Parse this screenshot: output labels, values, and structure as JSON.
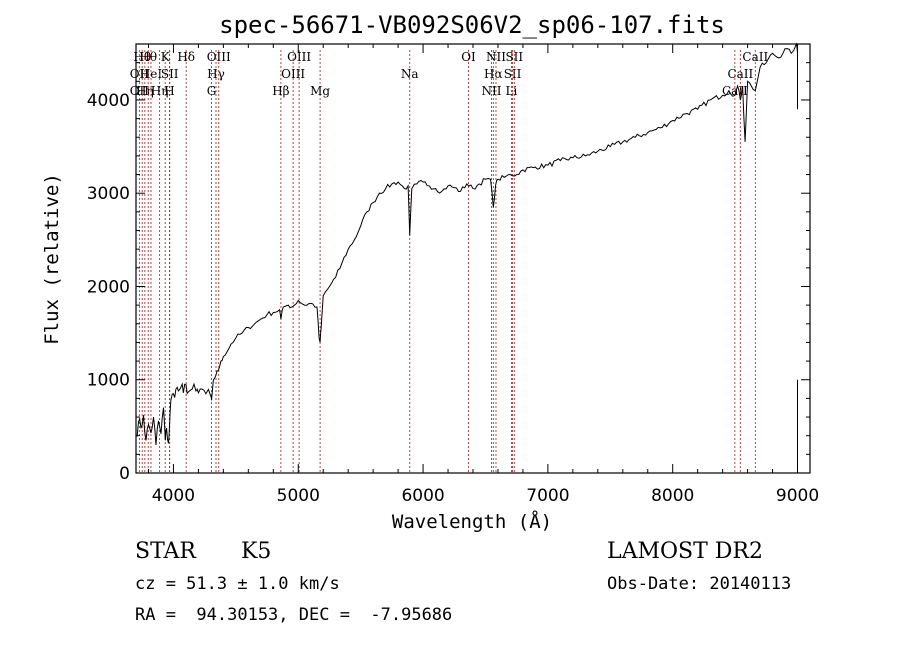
{
  "chart_data": {
    "type": "line",
    "title": "spec-56671-VB092S06V2_sp06-107.fits",
    "xlabel": "Wavelength (Å)",
    "ylabel": "Flux (relative)",
    "xlim": [
      3700,
      9100
    ],
    "ylim": [
      0,
      4600
    ],
    "xticks": [
      4000,
      5000,
      6000,
      7000,
      8000,
      9000
    ],
    "yticks": [
      0,
      1000,
      2000,
      3000,
      4000
    ],
    "grid": false,
    "series": [
      {
        "x": [
          3700,
          3720,
          3740,
          3760,
          3780,
          3800,
          3820,
          3840,
          3860,
          3880,
          3900,
          3920,
          3935,
          3945,
          3960,
          3968,
          3980,
          4000,
          4020,
          4040,
          4060,
          4080,
          4100,
          4120,
          4150,
          4180,
          4200,
          4230,
          4260,
          4300,
          4305,
          4320,
          4340,
          4360,
          4380,
          4400,
          4430,
          4460,
          4500,
          4550,
          4600,
          4650,
          4700,
          4750,
          4800,
          4850,
          4861,
          4880,
          4920,
          4950,
          5000,
          5050,
          5100,
          5150,
          5167,
          5175,
          5183,
          5200,
          5250,
          5300,
          5350,
          5400,
          5450,
          5500,
          5550,
          5600,
          5650,
          5700,
          5750,
          5800,
          5850,
          5880,
          5893,
          5910,
          5950,
          6000,
          6050,
          6100,
          6150,
          6200,
          6250,
          6300,
          6350,
          6400,
          6450,
          6500,
          6540,
          6563,
          6580,
          6600,
          6650,
          6700,
          6750,
          6800,
          6900,
          7000,
          7100,
          7200,
          7300,
          7400,
          7500,
          7600,
          7700,
          7800,
          7900,
          8000,
          8100,
          8200,
          8300,
          8400,
          8450,
          8498,
          8520,
          8542,
          8560,
          8580,
          8600,
          8630,
          8662,
          8700,
          8750,
          8800,
          8850,
          8900,
          8950,
          8990,
          9000
        ],
        "values": [
          400,
          550,
          480,
          620,
          350,
          520,
          430,
          600,
          300,
          560,
          420,
          700,
          350,
          480,
          320,
          500,
          780,
          850,
          900,
          880,
          920,
          860,
          950,
          870,
          900,
          880,
          860,
          900,
          850,
          820,
          780,
          1000,
          1050,
          1100,
          1200,
          1250,
          1300,
          1380,
          1450,
          1500,
          1560,
          1600,
          1650,
          1700,
          1720,
          1750,
          1650,
          1780,
          1800,
          1780,
          1850,
          1800,
          1820,
          1780,
          1450,
          1400,
          1550,
          1900,
          2000,
          2100,
          2250,
          2400,
          2500,
          2650,
          2800,
          2900,
          3000,
          3050,
          3100,
          3120,
          3050,
          3080,
          2550,
          3050,
          3100,
          3120,
          3080,
          3050,
          3020,
          3080,
          3060,
          3020,
          3100,
          3050,
          3100,
          3150,
          3150,
          2850,
          3080,
          3150,
          3170,
          3200,
          3200,
          3250,
          3280,
          3300,
          3350,
          3380,
          3400,
          3450,
          3500,
          3550,
          3600,
          3650,
          3700,
          3780,
          3850,
          3900,
          4000,
          4050,
          4100,
          4050,
          4150,
          4000,
          4150,
          3550,
          4200,
          4150,
          4100,
          4350,
          4400,
          4500,
          4450,
          4550,
          4500,
          4600,
          4500
        ]
      }
    ],
    "element_lines": [
      {
        "wl": 3727,
        "label": "OII",
        "row": 2
      },
      {
        "wl": 3727,
        "label": "OII",
        "row": 3
      },
      {
        "wl": 3750,
        "label": "Hθ",
        "row": 1
      },
      {
        "wl": 3771,
        "label": "Hη",
        "row": 3
      },
      {
        "wl": 3798,
        "label": "Hθ",
        "row": 1
      },
      {
        "wl": 3820,
        "label": "HeI",
        "row": 2
      },
      {
        "wl": 3889,
        "label": "Hη",
        "row": 3
      },
      {
        "wl": 3934,
        "label": "K",
        "row": 1
      },
      {
        "wl": 3968,
        "label": "H",
        "row": 3
      },
      {
        "wl": 3970,
        "label": "SII",
        "row": 2
      },
      {
        "wl": 4102,
        "label": "Hδ",
        "row": 1
      },
      {
        "wl": 4305,
        "label": "G",
        "row": 3
      },
      {
        "wl": 4341,
        "label": "Hγ",
        "row": 2
      },
      {
        "wl": 4363,
        "label": "OIII",
        "row": 1
      },
      {
        "wl": 4861,
        "label": "Hβ",
        "row": 3
      },
      {
        "wl": 4959,
        "label": "OIII",
        "row": 2
      },
      {
        "wl": 5007,
        "label": "OIII",
        "row": 1
      },
      {
        "wl": 5175,
        "label": "Mg",
        "row": 3
      },
      {
        "wl": 5893,
        "label": "Na",
        "row": 2
      },
      {
        "wl": 6364,
        "label": "OI",
        "row": 1
      },
      {
        "wl": 6548,
        "label": "NII",
        "row": 3
      },
      {
        "wl": 6563,
        "label": "Hα",
        "row": 2
      },
      {
        "wl": 6584,
        "label": "NII",
        "row": 1
      },
      {
        "wl": 6708,
        "label": "Li",
        "row": 3
      },
      {
        "wl": 6717,
        "label": "SII",
        "row": 2
      },
      {
        "wl": 6731,
        "label": "SII",
        "row": 1
      },
      {
        "wl": 8498,
        "label": "CaII",
        "row": 3
      },
      {
        "wl": 8542,
        "label": "CaII",
        "row": 2
      },
      {
        "wl": 8662,
        "label": "CaII",
        "row": 1
      }
    ]
  },
  "info": {
    "object_class": "STAR",
    "subclass": "K5",
    "survey": "LAMOST DR2",
    "cz": "cz = 51.3 ± 1.0 km/s",
    "obs_date": "Obs-Date: 20140113",
    "radec": "RA =  94.30153, DEC =  -7.95686"
  }
}
